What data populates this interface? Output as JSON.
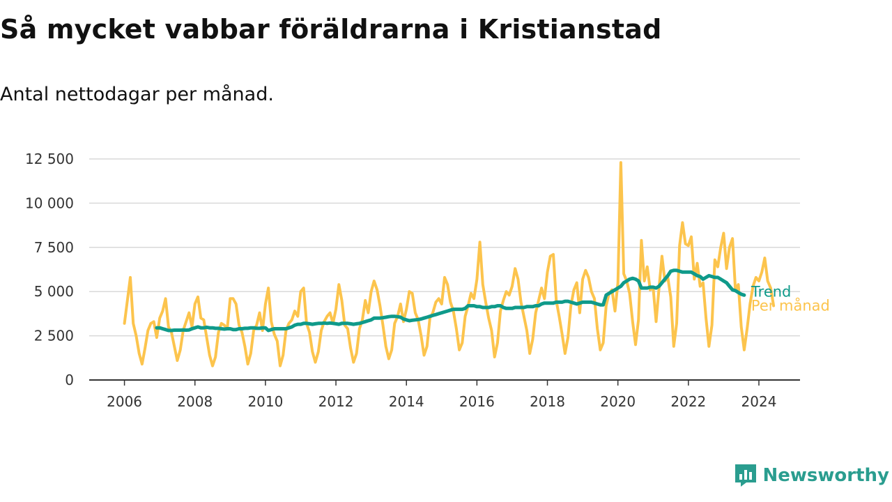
{
  "title": "Så mycket vabbar föräldrarna i Kristianstad",
  "subtitle": "Antal nettodagar per månad.",
  "brand": "Newsworthy",
  "colors": {
    "monthly": "#fcc44d",
    "trend": "#0f9a8a",
    "grid": "#d9d9d9",
    "axis": "#333333",
    "brand": "#2a9d8f"
  },
  "chart_data": {
    "type": "line",
    "title": "Så mycket vabbar föräldrarna i Kristianstad",
    "subtitle": "Antal nettodagar per månad.",
    "xlabel": "",
    "ylabel": "",
    "ylim": [
      0,
      12500
    ],
    "xlim": [
      "2005-01",
      "2025-03"
    ],
    "y_ticks": [
      0,
      2500,
      5000,
      7500,
      10000,
      12500
    ],
    "y_tick_labels": [
      "0",
      "2 500",
      "5 000",
      "7 500",
      "10 000",
      "12 500"
    ],
    "x_ticks": [
      "2006-01",
      "2008-01",
      "2010-01",
      "2012-01",
      "2014-01",
      "2016-01",
      "2018-01",
      "2020-01",
      "2022-01",
      "2024-01"
    ],
    "x_tick_labels": [
      "2006",
      "2008",
      "2010",
      "2012",
      "2014",
      "2016",
      "2018",
      "2020",
      "2022",
      "2024"
    ],
    "grid": "horizontal",
    "series": [
      {
        "name": "Per månad",
        "start": "2006-01",
        "values": [
          3200,
          4500,
          5800,
          3200,
          2500,
          1500,
          900,
          1800,
          2800,
          3200,
          3300,
          2400,
          3500,
          3900,
          4600,
          3000,
          2700,
          1900,
          1100,
          1700,
          2800,
          3300,
          3800,
          3000,
          4300,
          4700,
          3500,
          3400,
          2400,
          1400,
          800,
          1300,
          2700,
          3200,
          3100,
          2900,
          4600,
          4600,
          4300,
          3100,
          2700,
          1900,
          900,
          1500,
          2800,
          3100,
          3800,
          2800,
          4300,
          5200,
          3300,
          2600,
          2200,
          800,
          1400,
          2800,
          3200,
          3400,
          3900,
          3600,
          5000,
          5200,
          3200,
          2700,
          1600,
          1000,
          1600,
          2800,
          3300,
          3600,
          3800,
          3200,
          4000,
          5400,
          4500,
          3100,
          2900,
          1800,
          1000,
          1500,
          2900,
          3400,
          4500,
          3800,
          5000,
          5600,
          5100,
          4200,
          3100,
          1900,
          1200,
          1700,
          3200,
          3600,
          4300,
          3300,
          4000,
          5000,
          4900,
          3800,
          3400,
          2500,
          1400,
          1900,
          3500,
          3800,
          4400,
          4600,
          4300,
          5800,
          5400,
          4400,
          3900,
          2900,
          1700,
          2100,
          3600,
          4200,
          4900,
          4600,
          5700,
          7800,
          5400,
          4400,
          3500,
          2800,
          1300,
          2100,
          3900,
          4500,
          5000,
          4800,
          5300,
          6300,
          5700,
          4400,
          3600,
          2800,
          1500,
          2300,
          3800,
          4500,
          5200,
          4600,
          6100,
          7000,
          7100,
          4500,
          3600,
          2600,
          1500,
          2400,
          4200,
          5100,
          5500,
          3800,
          5700,
          6200,
          5800,
          5000,
          4600,
          2900,
          1700,
          2100,
          4200,
          4900,
          5100,
          3900,
          5500,
          12300,
          6000,
          5600,
          4900,
          3300,
          2000,
          3400,
          7900,
          5600,
          6400,
          5100,
          5200,
          3300,
          5200,
          7000,
          5600,
          5800,
          4700,
          1900,
          3200,
          7600,
          8900,
          7700,
          7600,
          8100,
          5700,
          6600,
          5300,
          5500,
          3500,
          1900,
          3100,
          6800,
          6400,
          7500,
          8300,
          6300,
          7500,
          8000,
          5100,
          5400,
          3000,
          1700,
          2900,
          4300,
          5300,
          5800,
          5600,
          6100,
          6900,
          5600,
          5200,
          4200
        ]
      },
      {
        "name": "Trend",
        "start": "2006-12",
        "values": [
          2950,
          2950,
          2900,
          2850,
          2800,
          2800,
          2820,
          2820,
          2820,
          2830,
          2820,
          2830,
          2900,
          2950,
          3000,
          2950,
          2950,
          2980,
          2950,
          2950,
          2920,
          2920,
          2900,
          2880,
          2900,
          2900,
          2850,
          2850,
          2900,
          2900,
          2920,
          2920,
          2950,
          2950,
          2920,
          2920,
          2950,
          2950,
          2800,
          2850,
          2900,
          2900,
          2900,
          2900,
          2900,
          2950,
          3000,
          3100,
          3150,
          3150,
          3200,
          3200,
          3180,
          3150,
          3180,
          3200,
          3200,
          3220,
          3200,
          3220,
          3200,
          3180,
          3150,
          3200,
          3200,
          3200,
          3180,
          3150,
          3180,
          3200,
          3250,
          3300,
          3350,
          3400,
          3500,
          3500,
          3500,
          3520,
          3550,
          3580,
          3600,
          3600,
          3580,
          3550,
          3450,
          3400,
          3350,
          3380,
          3400,
          3420,
          3450,
          3500,
          3550,
          3600,
          3650,
          3700,
          3750,
          3800,
          3850,
          3900,
          3950,
          4000,
          4000,
          4000,
          4000,
          4050,
          4200,
          4200,
          4200,
          4150,
          4150,
          4100,
          4100,
          4100,
          4150,
          4150,
          4200,
          4200,
          4100,
          4050,
          4050,
          4050,
          4100,
          4100,
          4100,
          4100,
          4150,
          4150,
          4150,
          4200,
          4200,
          4300,
          4350,
          4350,
          4350,
          4350,
          4400,
          4400,
          4400,
          4450,
          4450,
          4400,
          4350,
          4300,
          4350,
          4400,
          4400,
          4400,
          4400,
          4350,
          4300,
          4250,
          4250,
          4800,
          4900,
          5000,
          5100,
          5200,
          5300,
          5500,
          5600,
          5700,
          5750,
          5700,
          5600,
          5200,
          5200,
          5200,
          5250,
          5250,
          5200,
          5300,
          5500,
          5700,
          5900,
          6150,
          6200,
          6200,
          6150,
          6100,
          6100,
          6100,
          6100,
          6000,
          5900,
          5850,
          5700,
          5800,
          5900,
          5850,
          5800,
          5800,
          5700,
          5600,
          5500,
          5300,
          5100,
          5050,
          4950,
          4850,
          4800
        ]
      }
    ],
    "series_labels": [
      "Trend",
      "Per månad"
    ]
  }
}
